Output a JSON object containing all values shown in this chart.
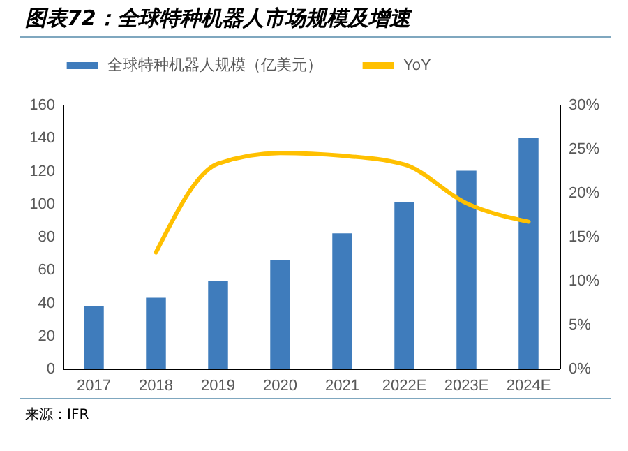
{
  "chart_data": {
    "type": "bar",
    "title": "图表72：全球特种机器人市场规模及增速",
    "categories": [
      "2017",
      "2018",
      "2019",
      "2020",
      "2021",
      "2022E",
      "2023E",
      "2024E"
    ],
    "series": [
      {
        "name": "全球特种机器人规模（亿美元）",
        "color": "#3f7cbc",
        "values": [
          38,
          43,
          53,
          66,
          82,
          101,
          120,
          140
        ]
      },
      {
        "name": "YoY",
        "type": "line",
        "axis": "y2",
        "color": "#ffc000",
        "values": [
          null,
          13.2,
          23.3,
          24.5,
          24.2,
          23.2,
          18.8,
          16.7
        ]
      }
    ],
    "ylim": [
      0,
      160
    ],
    "yticks": [
      0,
      20,
      40,
      60,
      80,
      100,
      120,
      140,
      160
    ],
    "y2lim": [
      0,
      30
    ],
    "y2ticks": [
      {
        "value": 0,
        "label": "0%"
      },
      {
        "value": 5,
        "label": "5%"
      },
      {
        "value": 10,
        "label": "10%"
      },
      {
        "value": 15,
        "label": "15%"
      },
      {
        "value": 20,
        "label": "20%"
      },
      {
        "value": 25,
        "label": "25%"
      },
      {
        "value": 30,
        "label": "30%"
      }
    ],
    "legend": "top",
    "grid": false,
    "annotations": [
      "来源：IFR"
    ]
  }
}
